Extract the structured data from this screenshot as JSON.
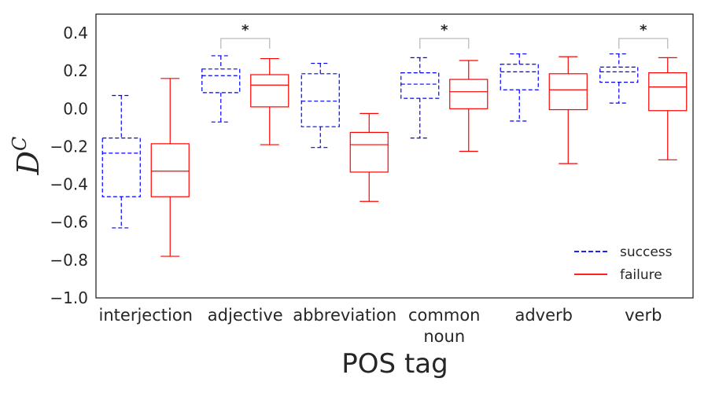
{
  "chart_data": {
    "type": "boxplot",
    "xlabel": "POS tag",
    "ylabel": "D",
    "ylabel_superscript": "C",
    "ylim": [
      -1.0,
      0.5
    ],
    "yticks": [
      {
        "value": 0.4,
        "label": "0.4"
      },
      {
        "value": 0.2,
        "label": "0.2"
      },
      {
        "value": 0.0,
        "label": "0.0"
      },
      {
        "value": -0.2,
        "label": "−0.2"
      },
      {
        "value": -0.4,
        "label": "−0.4"
      },
      {
        "value": -0.6,
        "label": "−0.6"
      },
      {
        "value": -0.8,
        "label": "−0.8"
      },
      {
        "value": -1.0,
        "label": "−1.0"
      }
    ],
    "categories": [
      {
        "lines": [
          "interjection"
        ]
      },
      {
        "lines": [
          "adjective"
        ]
      },
      {
        "lines": [
          "abbreviation"
        ]
      },
      {
        "lines": [
          "common",
          "noun"
        ]
      },
      {
        "lines": [
          "adverb"
        ]
      },
      {
        "lines": [
          "verb"
        ]
      }
    ],
    "series": [
      {
        "name": "success",
        "color": "#0000ff",
        "dashed": true,
        "boxes": [
          {
            "whislo": -0.63,
            "q1": -0.465,
            "med": -0.235,
            "q3": -0.155,
            "whishi": 0.07
          },
          {
            "whislo": -0.07,
            "q1": 0.085,
            "med": 0.175,
            "q3": 0.21,
            "whishi": 0.28
          },
          {
            "whislo": -0.205,
            "q1": -0.095,
            "med": 0.04,
            "q3": 0.185,
            "whishi": 0.24
          },
          {
            "whislo": -0.155,
            "q1": 0.055,
            "med": 0.13,
            "q3": 0.19,
            "whishi": 0.27
          },
          {
            "whislo": -0.065,
            "q1": 0.1,
            "med": 0.195,
            "q3": 0.235,
            "whishi": 0.29
          },
          {
            "whislo": 0.03,
            "q1": 0.14,
            "med": 0.195,
            "q3": 0.22,
            "whishi": 0.29
          }
        ]
      },
      {
        "name": "failure",
        "color": "#ff0000",
        "dashed": false,
        "boxes": [
          {
            "whislo": -0.78,
            "q1": -0.465,
            "med": -0.33,
            "q3": -0.185,
            "whishi": 0.16
          },
          {
            "whislo": -0.19,
            "q1": 0.01,
            "med": 0.125,
            "q3": 0.18,
            "whishi": 0.265
          },
          {
            "whislo": -0.49,
            "q1": -0.335,
            "med": -0.19,
            "q3": -0.125,
            "whishi": -0.025
          },
          {
            "whislo": -0.225,
            "q1": 0.0,
            "med": 0.09,
            "q3": 0.155,
            "whishi": 0.255
          },
          {
            "whislo": -0.29,
            "q1": -0.005,
            "med": 0.1,
            "q3": 0.185,
            "whishi": 0.275
          },
          {
            "whislo": -0.27,
            "q1": -0.01,
            "med": 0.115,
            "q3": 0.19,
            "whishi": 0.27
          }
        ]
      }
    ],
    "significance": [
      {
        "category_index": 1,
        "label": "*"
      },
      {
        "category_index": 3,
        "label": "*"
      },
      {
        "category_index": 5,
        "label": "*"
      }
    ],
    "legend": {
      "location": "lower-right",
      "entries": [
        {
          "label": "success",
          "color": "#0000ff",
          "dashed": true
        },
        {
          "label": "failure",
          "color": "#ff0000",
          "dashed": false
        }
      ]
    },
    "grid": false
  }
}
